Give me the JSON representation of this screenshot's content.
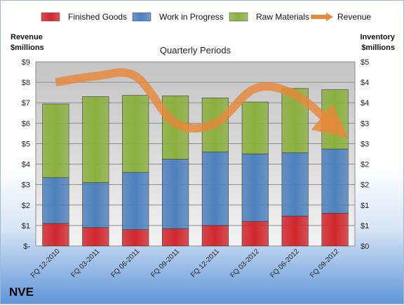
{
  "company": "NVE",
  "chart_data": {
    "type": "bar",
    "stacked": true,
    "title": "Quarterly Periods",
    "ylabel_left": "Revenue\n$millions",
    "ylabel_right": "Inventory\n$millions",
    "categories": [
      "FQ 12-2010",
      "FQ 03-2011",
      "FQ 06-2011",
      "FQ 09-2011",
      "FQ 12-2011",
      "FQ 03-2012",
      "FQ 06-2012",
      "FQ 09-2012"
    ],
    "series": [
      {
        "name": "Finished Goods",
        "color": "#d0282e",
        "axis": "right",
        "values": [
          0.55,
          0.45,
          0.4,
          0.42,
          0.5,
          0.6,
          0.73,
          0.8
        ]
      },
      {
        "name": "Work in Progress",
        "color": "#4f81bd",
        "axis": "right",
        "values": [
          1.12,
          1.1,
          1.4,
          1.7,
          1.8,
          1.65,
          1.55,
          1.57
        ]
      },
      {
        "name": "Raw Materials",
        "color": "#8bb03f",
        "axis": "right",
        "values": [
          1.8,
          2.1,
          1.88,
          1.55,
          1.32,
          1.27,
          1.57,
          1.45
        ]
      },
      {
        "name": "Revenue",
        "color": "#e8883a",
        "type": "line",
        "axis": "left",
        "values": [
          8.0,
          8.3,
          8.3,
          6.0,
          6.0,
          7.7,
          7.4,
          5.8
        ]
      }
    ],
    "y_left": {
      "min": 0,
      "max": 9,
      "ticks": [
        "$-",
        "$1",
        "$2",
        "$3",
        "$4",
        "$5",
        "$6",
        "$7",
        "$8",
        "$9"
      ]
    },
    "y_right": {
      "min": 0,
      "max": 4.5,
      "ticks": [
        "$0",
        "$1",
        "$1",
        "$2",
        "$2",
        "$3",
        "$3",
        "$4",
        "$4",
        "$5"
      ]
    },
    "grid": true,
    "legend": "top"
  }
}
